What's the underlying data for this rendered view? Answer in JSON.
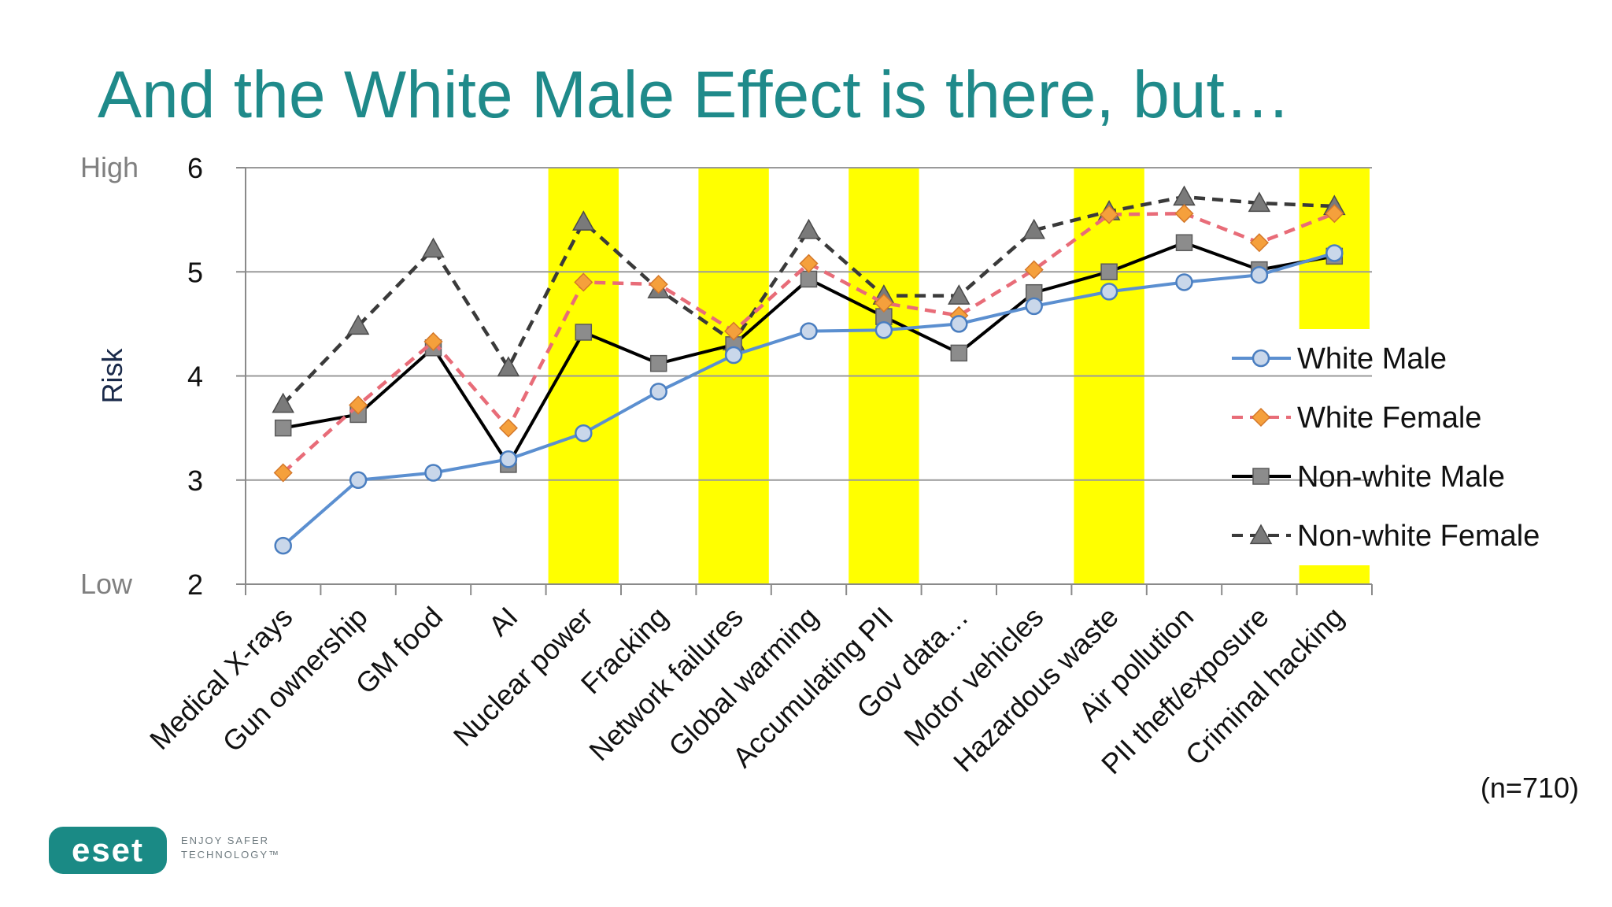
{
  "slide": {
    "title": "And the White Male Effect is there, but…",
    "note": "(n=710)"
  },
  "brand": {
    "logo_text": "eset",
    "tagline_line1": "ENJOY SAFER",
    "tagline_line2": "TECHNOLOGY™",
    "color": "#1a8a85"
  },
  "chart_data": {
    "type": "line",
    "ylabel": "Risk",
    "ylim": [
      2,
      6
    ],
    "yticks": [
      2,
      3,
      4,
      5,
      6
    ],
    "ytick_extra": {
      "High": 6,
      "Low": 2
    },
    "grid": true,
    "legend_position": "right",
    "categories": [
      "Medical X-rays",
      "Gun ownership",
      "GM food",
      "AI",
      "Nuclear power",
      "Fracking",
      "Network failures",
      "Global warming",
      "Accumulating PII",
      "Gov data…",
      "Motor vehicles",
      "Hazardous waste",
      "Air pollution",
      "PII theft/exposure",
      "Criminal hacking"
    ],
    "highlighted_categories": [
      "Nuclear power",
      "Network failures",
      "Accumulating PII",
      "Hazardous waste",
      "Criminal hacking"
    ],
    "highlight_color": "#ffff00",
    "series": [
      {
        "name": "White Male",
        "color": "#5b8fd0",
        "dash": "solid",
        "marker": "circle",
        "values": [
          2.37,
          3.0,
          3.07,
          3.2,
          3.45,
          3.85,
          4.2,
          4.43,
          4.44,
          4.5,
          4.67,
          4.81,
          4.9,
          4.97,
          5.18
        ]
      },
      {
        "name": "White Female",
        "color": "#e86c78",
        "dash": "dashed",
        "marker": "diamond",
        "values": [
          3.07,
          3.72,
          4.33,
          3.5,
          4.9,
          4.88,
          4.43,
          5.08,
          4.7,
          4.58,
          5.02,
          5.55,
          5.56,
          5.28,
          5.56
        ]
      },
      {
        "name": "Non-white Male",
        "color": "#000000",
        "dash": "solid",
        "marker": "square",
        "values": [
          3.5,
          3.63,
          4.27,
          3.15,
          4.42,
          4.12,
          4.3,
          4.93,
          4.57,
          4.22,
          4.8,
          5.0,
          5.28,
          5.02,
          5.15
        ]
      },
      {
        "name": "Non-white Female",
        "color": "#3a3a3a",
        "dash": "dashed",
        "marker": "triangle",
        "values": [
          3.73,
          4.48,
          5.22,
          4.08,
          5.48,
          4.83,
          4.33,
          5.4,
          4.77,
          4.77,
          5.4,
          5.58,
          5.72,
          5.66,
          5.63
        ]
      }
    ]
  }
}
